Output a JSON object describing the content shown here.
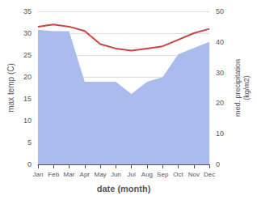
{
  "chart_data": {
    "type": "line",
    "xlabel": "date (month)",
    "ylabel": "max temp (C)",
    "y2label": "med. precipitation\n(kg/m2)",
    "categories": [
      "Jan",
      "Feb",
      "Mar",
      "Apr",
      "May",
      "Jun",
      "Jul",
      "Aug",
      "Sep",
      "Oct",
      "Nov",
      "Dec"
    ],
    "series": [
      {
        "type": "area",
        "axis": "y2",
        "color": "#aabbee",
        "values": [
          44.0,
          43.5,
          43.5,
          27.0,
          27.0,
          27.0,
          23.0,
          27.0,
          28.5,
          36.0,
          38.0,
          40.0
        ]
      },
      {
        "type": "line",
        "color": "#cc4444",
        "values": [
          31.5,
          32.0,
          31.5,
          30.5,
          27.5,
          26.5,
          26.0,
          26.5,
          27.0,
          28.5,
          30.0,
          31.0
        ]
      }
    ],
    "ylim": [
      0,
      35
    ],
    "yticks": [
      0,
      5,
      10,
      15,
      20,
      25,
      30,
      35
    ],
    "y2lim": [
      0,
      50
    ],
    "y2ticks": [
      0,
      10,
      20,
      30,
      40,
      50
    ],
    "grid": true
  }
}
